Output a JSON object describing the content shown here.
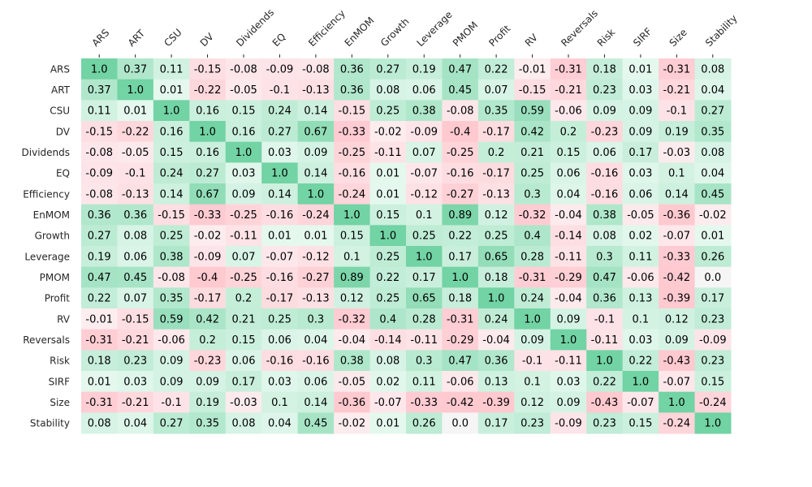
{
  "chart_data": {
    "type": "heatmap",
    "title": "",
    "xlabel": "",
    "ylabel": "",
    "labels": [
      "ARS",
      "ART",
      "CSU",
      "DV",
      "Dividends",
      "EQ",
      "Efficiency",
      "EnMOM",
      "Growth",
      "Leverage",
      "PMOM",
      "Profit",
      "RV",
      "Reversals",
      "Risk",
      "SIRF",
      "Size",
      "Stability"
    ],
    "matrix": [
      [
        "1.0",
        "0.37",
        "0.11",
        "-0.15",
        "-0.08",
        "-0.09",
        "-0.08",
        "0.36",
        "0.27",
        "0.19",
        "0.47",
        "0.22",
        "-0.01",
        "-0.31",
        "0.18",
        "0.01",
        "-0.31",
        "0.08"
      ],
      [
        "0.37",
        "1.0",
        "0.01",
        "-0.22",
        "-0.05",
        "-0.1",
        "-0.13",
        "0.36",
        "0.08",
        "0.06",
        "0.45",
        "0.07",
        "-0.15",
        "-0.21",
        "0.23",
        "0.03",
        "-0.21",
        "0.04"
      ],
      [
        "0.11",
        "0.01",
        "1.0",
        "0.16",
        "0.15",
        "0.24",
        "0.14",
        "-0.15",
        "0.25",
        "0.38",
        "-0.08",
        "0.35",
        "0.59",
        "-0.06",
        "0.09",
        "0.09",
        "-0.1",
        "0.27"
      ],
      [
        "-0.15",
        "-0.22",
        "0.16",
        "1.0",
        "0.16",
        "0.27",
        "0.67",
        "-0.33",
        "-0.02",
        "-0.09",
        "-0.4",
        "-0.17",
        "0.42",
        "0.2",
        "-0.23",
        "0.09",
        "0.19",
        "0.35"
      ],
      [
        "-0.08",
        "-0.05",
        "0.15",
        "0.16",
        "1.0",
        "0.03",
        "0.09",
        "-0.25",
        "-0.11",
        "0.07",
        "-0.25",
        "0.2",
        "0.21",
        "0.15",
        "0.06",
        "0.17",
        "-0.03",
        "0.08"
      ],
      [
        "-0.09",
        "-0.1",
        "0.24",
        "0.27",
        "0.03",
        "1.0",
        "0.14",
        "-0.16",
        "0.01",
        "-0.07",
        "-0.16",
        "-0.17",
        "0.25",
        "0.06",
        "-0.16",
        "0.03",
        "0.1",
        "0.04"
      ],
      [
        "-0.08",
        "-0.13",
        "0.14",
        "0.67",
        "0.09",
        "0.14",
        "1.0",
        "-0.24",
        "0.01",
        "-0.12",
        "-0.27",
        "-0.13",
        "0.3",
        "0.04",
        "-0.16",
        "0.06",
        "0.14",
        "0.45"
      ],
      [
        "0.36",
        "0.36",
        "-0.15",
        "-0.33",
        "-0.25",
        "-0.16",
        "-0.24",
        "1.0",
        "0.15",
        "0.1",
        "0.89",
        "0.12",
        "-0.32",
        "-0.04",
        "0.38",
        "-0.05",
        "-0.36",
        "-0.02"
      ],
      [
        "0.27",
        "0.08",
        "0.25",
        "-0.02",
        "-0.11",
        "0.01",
        "0.01",
        "0.15",
        "1.0",
        "0.25",
        "0.22",
        "0.25",
        "0.4",
        "-0.14",
        "0.08",
        "0.02",
        "-0.07",
        "0.01"
      ],
      [
        "0.19",
        "0.06",
        "0.38",
        "-0.09",
        "0.07",
        "-0.07",
        "-0.12",
        "0.1",
        "0.25",
        "1.0",
        "0.17",
        "0.65",
        "0.28",
        "-0.11",
        "0.3",
        "0.11",
        "-0.33",
        "0.26"
      ],
      [
        "0.47",
        "0.45",
        "-0.08",
        "-0.4",
        "-0.25",
        "-0.16",
        "-0.27",
        "0.89",
        "0.22",
        "0.17",
        "1.0",
        "0.18",
        "-0.31",
        "-0.29",
        "0.47",
        "-0.06",
        "-0.42",
        "0.0"
      ],
      [
        "0.22",
        "0.07",
        "0.35",
        "-0.17",
        "0.2",
        "-0.17",
        "-0.13",
        "0.12",
        "0.25",
        "0.65",
        "0.18",
        "1.0",
        "0.24",
        "-0.04",
        "0.36",
        "0.13",
        "-0.39",
        "0.17"
      ],
      [
        "-0.01",
        "-0.15",
        "0.59",
        "0.42",
        "0.21",
        "0.25",
        "0.3",
        "-0.32",
        "0.4",
        "0.28",
        "-0.31",
        "0.24",
        "1.0",
        "0.09",
        "-0.1",
        "0.1",
        "0.12",
        "0.23"
      ],
      [
        "-0.31",
        "-0.21",
        "-0.06",
        "0.2",
        "0.15",
        "0.06",
        "0.04",
        "-0.04",
        "-0.14",
        "-0.11",
        "-0.29",
        "-0.04",
        "0.09",
        "1.0",
        "-0.11",
        "0.03",
        "0.09",
        "-0.09"
      ],
      [
        "0.18",
        "0.23",
        "0.09",
        "-0.23",
        "0.06",
        "-0.16",
        "-0.16",
        "0.38",
        "0.08",
        "0.3",
        "0.47",
        "0.36",
        "-0.1",
        "-0.11",
        "1.0",
        "0.22",
        "-0.43",
        "0.23"
      ],
      [
        "0.01",
        "0.03",
        "0.09",
        "0.09",
        "0.17",
        "0.03",
        "0.06",
        "-0.05",
        "0.02",
        "0.11",
        "-0.06",
        "0.13",
        "0.1",
        "0.03",
        "0.22",
        "1.0",
        "-0.07",
        "0.15"
      ],
      [
        "-0.31",
        "-0.21",
        "-0.1",
        "0.19",
        "-0.03",
        "0.1",
        "0.14",
        "-0.36",
        "-0.07",
        "-0.33",
        "-0.42",
        "-0.39",
        "0.12",
        "0.09",
        "-0.43",
        "-0.07",
        "1.0",
        "-0.24"
      ],
      [
        "0.08",
        "0.04",
        "0.27",
        "0.35",
        "0.08",
        "0.04",
        "0.45",
        "-0.02",
        "0.01",
        "0.26",
        "0.0",
        "0.17",
        "0.23",
        "-0.09",
        "0.23",
        "0.15",
        "-0.24",
        "1.0"
      ]
    ],
    "vmin": -1,
    "vmax": 1,
    "colors": {
      "positive": "#72d3a4",
      "negative": "#ffc9d0",
      "neutral": "#f5f5f5",
      "text": "#000000",
      "tick": "#262626"
    },
    "legend": "none",
    "grid": false
  }
}
